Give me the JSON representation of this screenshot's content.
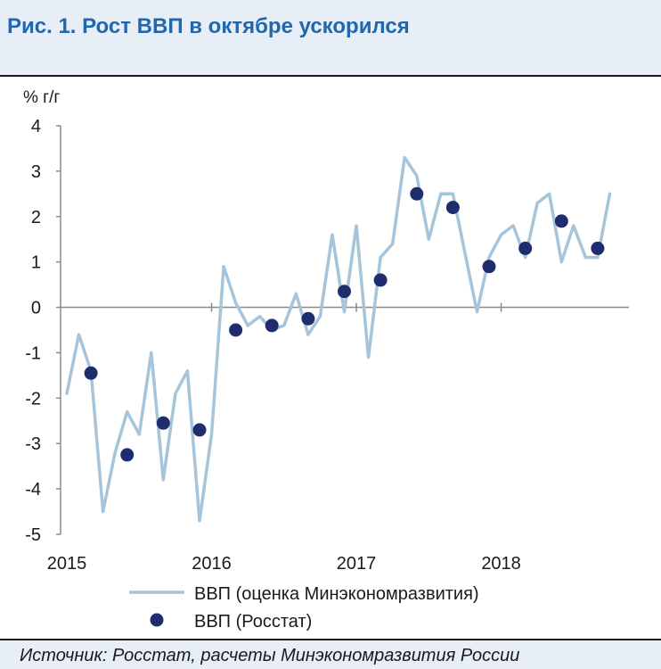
{
  "header": {
    "title": "Рис. 1. Рост ВВП в октябре ускорился"
  },
  "footer": {
    "source": "Источник: Росстат, расчеты Минэкономразвития России"
  },
  "colors": {
    "title": "#2167ad",
    "line": "#a6c4da",
    "dot": "#1f2d6e",
    "background": "#e7eef5"
  },
  "chart_data": {
    "type": "line",
    "ylabel": "% г/г",
    "ylim": [
      -5,
      4
    ],
    "yticks": [
      4,
      3,
      2,
      1,
      0,
      -1,
      -2,
      -3,
      -4,
      -5
    ],
    "xticks": [
      "2015",
      "2016",
      "2017",
      "2018"
    ],
    "xlim": [
      "2015-01",
      "2018-11"
    ],
    "grid": false,
    "legend_position": "bottom",
    "series": [
      {
        "name": "ВВП (оценка Минэкономразвития)",
        "type": "line",
        "x": [
          "2015-01",
          "2015-02",
          "2015-03",
          "2015-04",
          "2015-05",
          "2015-06",
          "2015-07",
          "2015-08",
          "2015-09",
          "2015-10",
          "2015-11",
          "2015-12",
          "2016-01",
          "2016-02",
          "2016-03",
          "2016-04",
          "2016-05",
          "2016-06",
          "2016-07",
          "2016-08",
          "2016-09",
          "2016-10",
          "2016-11",
          "2016-12",
          "2017-01",
          "2017-02",
          "2017-03",
          "2017-04",
          "2017-05",
          "2017-06",
          "2017-07",
          "2017-08",
          "2017-09",
          "2017-10",
          "2017-11",
          "2017-12",
          "2018-01",
          "2018-02",
          "2018-03",
          "2018-04",
          "2018-05",
          "2018-06",
          "2018-07",
          "2018-08",
          "2018-09",
          "2018-10"
        ],
        "values": [
          -1.9,
          -0.6,
          -1.4,
          -4.5,
          -3.2,
          -2.3,
          -2.8,
          -1.0,
          -3.8,
          -1.9,
          -1.4,
          -4.7,
          -2.8,
          0.9,
          0.1,
          -0.4,
          -0.2,
          -0.5,
          -0.4,
          0.3,
          -0.6,
          -0.2,
          1.6,
          -0.1,
          1.8,
          -1.1,
          1.1,
          1.4,
          3.3,
          2.9,
          1.5,
          2.5,
          2.5,
          1.2,
          -0.1,
          1.1,
          1.6,
          1.8,
          1.1,
          2.3,
          2.5,
          1.0,
          1.8,
          1.1,
          1.1,
          2.5
        ]
      },
      {
        "name": "ВВП (Росстат)",
        "type": "scatter",
        "x": [
          "2015-03",
          "2015-06",
          "2015-09",
          "2015-12",
          "2016-03",
          "2016-06",
          "2016-09",
          "2016-12",
          "2017-03",
          "2017-06",
          "2017-09",
          "2017-12",
          "2018-03",
          "2018-06",
          "2018-09"
        ],
        "values": [
          -1.45,
          -3.25,
          -2.55,
          -2.7,
          -0.5,
          -0.4,
          -0.25,
          0.35,
          0.6,
          2.5,
          2.2,
          0.9,
          1.3,
          1.9,
          1.3
        ]
      }
    ]
  }
}
